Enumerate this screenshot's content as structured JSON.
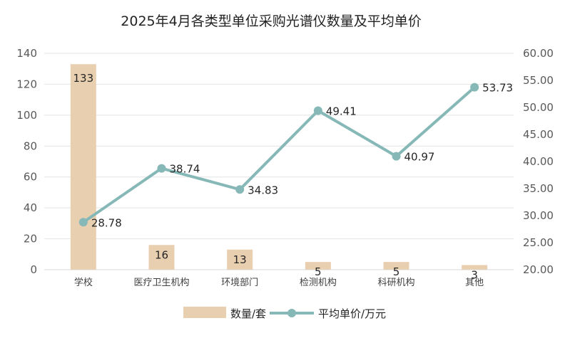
{
  "chart_data": {
    "type": "bar",
    "title": "2025年4月各类型单位采购光谱仪数量及平均单价",
    "categories": [
      "学校",
      "医疗卫生机构",
      "环境部门",
      "检测机构",
      "科研机构",
      "其他"
    ],
    "series": [
      {
        "name": "数量/套",
        "type": "bar",
        "axis": "left",
        "color": "#e8cfb0",
        "values": [
          133,
          16,
          13,
          5,
          5,
          3
        ]
      },
      {
        "name": "平均单价/万元",
        "type": "line",
        "axis": "right",
        "color": "#86b8b7",
        "values": [
          28.78,
          38.74,
          34.83,
          49.41,
          40.97,
          53.73
        ]
      }
    ],
    "y_left": {
      "range": [
        0,
        140
      ],
      "ticks": [
        "0",
        "20",
        "40",
        "60",
        "80",
        "100",
        "120",
        "140"
      ]
    },
    "y_right": {
      "range": [
        20,
        60
      ],
      "ticks": [
        "20.00",
        "25.00",
        "30.00",
        "35.00",
        "40.00",
        "45.00",
        "50.00",
        "55.00",
        "60.00"
      ]
    },
    "bar_labels": [
      "133",
      "16",
      "13",
      "5",
      "5",
      "3"
    ],
    "line_labels": [
      "28.78",
      "38.74",
      "34.83",
      "49.41",
      "40.97",
      "53.73"
    ],
    "grid": true,
    "legend_position": "bottom"
  }
}
